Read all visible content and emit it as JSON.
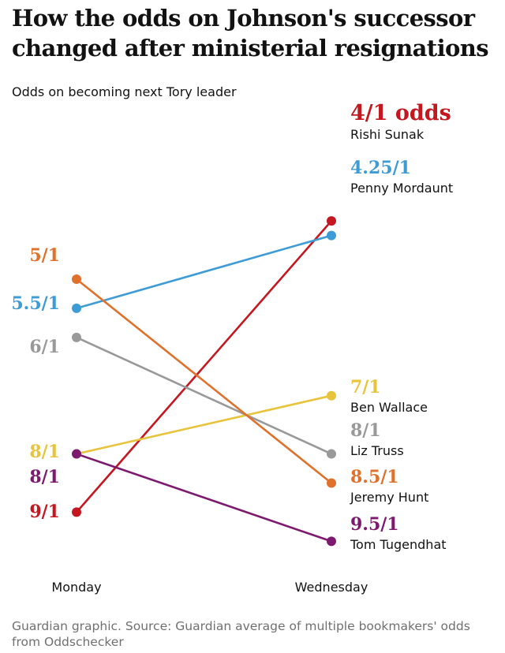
{
  "header": {
    "title": "How the odds on Johnson's successor changed after ministerial resignations",
    "subtitle": "Odds on becoming next Tory leader"
  },
  "footer": {
    "source": "Guardian graphic. Source: Guardian average of multiple bookmakers' odds from Oddschecker"
  },
  "chart_data": {
    "type": "slope",
    "title": "How the odds on Johnson's successor changed after ministerial resignations",
    "ylabel": "Odds on becoming next Tory leader",
    "categories": [
      "Monday",
      "Wednesday"
    ],
    "series": [
      {
        "name": "Rishi Sunak",
        "color": "#c4171f",
        "values": [
          9,
          4
        ],
        "labels": [
          "9/1",
          "4/1 odds"
        ]
      },
      {
        "name": "Penny Mordaunt",
        "color": "#3d9bd6",
        "values": [
          5.5,
          4.25
        ],
        "labels": [
          "5.5/1",
          "4.25/1"
        ]
      },
      {
        "name": "Ben Wallace",
        "color": "#e8c43c",
        "values": [
          8,
          7
        ],
        "labels": [
          "8/1",
          "7/1"
        ]
      },
      {
        "name": "Liz Truss",
        "color": "#999999",
        "values": [
          6,
          8
        ],
        "labels": [
          "6/1",
          "8/1"
        ]
      },
      {
        "name": "Jeremy Hunt",
        "color": "#e0712d",
        "values": [
          5,
          8.5
        ],
        "labels": [
          "5/1",
          "8.5/1"
        ]
      },
      {
        "name": "Tom Tugendhat",
        "color": "#7d1a6f",
        "values": [
          8,
          9.5
        ],
        "labels": [
          "8/1",
          "9.5/1"
        ]
      }
    ]
  }
}
